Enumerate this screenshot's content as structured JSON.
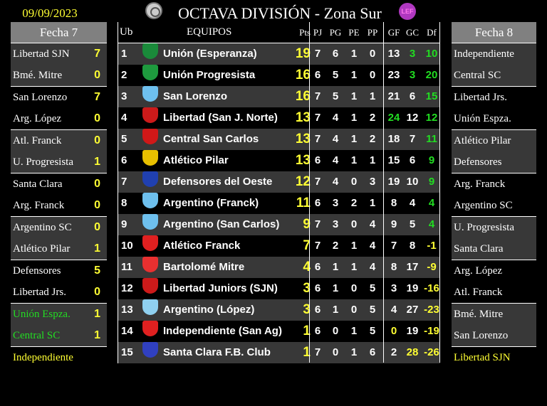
{
  "header": {
    "date": "09/09/2023",
    "title": "OCTAVA DIVISIÓN - Zona Sur",
    "logo_right_text": "LEF"
  },
  "colors": {
    "highlight_green": "#22dd22",
    "highlight_yellow": "#ffff33",
    "row_gray": "#383838",
    "header_gray": "#808080"
  },
  "left": {
    "title": "Fecha 7",
    "matches": [
      {
        "home": "Libertad SJN",
        "home_score": "7",
        "away": "Bmé. Mitre",
        "away_score": "0"
      },
      {
        "home": "San Lorenzo",
        "home_score": "7",
        "away": "Arg. López",
        "away_score": "0"
      },
      {
        "home": "Atl. Franck",
        "home_score": "0",
        "away": "U. Progresista",
        "away_score": "1"
      },
      {
        "home": "Santa Clara",
        "home_score": "0",
        "away": "Arg. Franck",
        "away_score": "0"
      },
      {
        "home": "Argentino SC",
        "home_score": "0",
        "away": "Atlético Pilar",
        "away_score": "1"
      },
      {
        "home": "Defensores",
        "home_score": "5",
        "away": "Libertad Jrs.",
        "away_score": "0"
      },
      {
        "home": "Unión Espza.",
        "home_score": "1",
        "away": "Central SC",
        "away_score": "1",
        "name_color": "green"
      }
    ],
    "bye": "Independiente"
  },
  "right": {
    "title": "Fecha 8",
    "matches": [
      {
        "home": "Independiente",
        "away": "Central SC"
      },
      {
        "home": "Libertad Jrs.",
        "away": "Unión Espza."
      },
      {
        "home": "Atlético Pilar",
        "away": "Defensores"
      },
      {
        "home": "Arg. Franck",
        "away": "Argentino SC"
      },
      {
        "home": "U. Progresista",
        "away": "Santa Clara"
      },
      {
        "home": "Arg. López",
        "away": "Atl. Franck"
      },
      {
        "home": "Bmé. Mitre",
        "away": "San Lorenzo"
      }
    ],
    "bye": "Libertad SJN"
  },
  "table": {
    "columns": {
      "ub": "Ub",
      "team": "EQUIPOS",
      "pts": "Pts",
      "pj": "PJ",
      "pg": "PG",
      "pe": "PE",
      "pp": "PP",
      "gf": "GF",
      "gc": "GC",
      "df": "Df"
    },
    "rows": [
      {
        "ub": "1",
        "team": "Unión (Esperanza)",
        "crest": "#1a8a3a",
        "pts": "19",
        "pj": "7",
        "pg": "6",
        "pe": "1",
        "pp": "0",
        "gf": "13",
        "gc": "3",
        "df": "10",
        "gc_hl": "green"
      },
      {
        "ub": "2",
        "team": "Unión Progresista",
        "crest": "#1e9a3e",
        "pts": "16",
        "pj": "6",
        "pg": "5",
        "pe": "1",
        "pp": "0",
        "gf": "23",
        "gc": "3",
        "df": "20",
        "gc_hl": "green"
      },
      {
        "ub": "3",
        "team": "San Lorenzo",
        "crest": "#6ec0ee",
        "pts": "16",
        "pj": "7",
        "pg": "5",
        "pe": "1",
        "pp": "1",
        "gf": "21",
        "gc": "6",
        "df": "15"
      },
      {
        "ub": "4",
        "team": "Libertad (San J. Norte)",
        "crest": "#cc1a1a",
        "pts": "13",
        "pj": "7",
        "pg": "4",
        "pe": "1",
        "pp": "2",
        "gf": "24",
        "gc": "12",
        "df": "12",
        "gf_hl": "green"
      },
      {
        "ub": "5",
        "team": "Central San Carlos",
        "crest": "#d01818",
        "pts": "13",
        "pj": "7",
        "pg": "4",
        "pe": "1",
        "pp": "2",
        "gf": "18",
        "gc": "7",
        "df": "11"
      },
      {
        "ub": "6",
        "team": "Atlético Pilar",
        "crest": "#e8c000",
        "pts": "13",
        "pj": "6",
        "pg": "4",
        "pe": "1",
        "pp": "1",
        "gf": "15",
        "gc": "6",
        "df": "9"
      },
      {
        "ub": "7",
        "team": "Defensores del Oeste",
        "crest": "#2040b0",
        "pts": "12",
        "pj": "7",
        "pg": "4",
        "pe": "0",
        "pp": "3",
        "gf": "19",
        "gc": "10",
        "df": "9"
      },
      {
        "ub": "8",
        "team": "Argentino (Franck)",
        "crest": "#6ec0ee",
        "pts": "11",
        "pj": "6",
        "pg": "3",
        "pe": "2",
        "pp": "1",
        "gf": "8",
        "gc": "4",
        "df": "4"
      },
      {
        "ub": "9",
        "team": "Argentino (San Carlos)",
        "crest": "#6ec0ee",
        "pts": "9",
        "pj": "7",
        "pg": "3",
        "pe": "0",
        "pp": "4",
        "gf": "9",
        "gc": "5",
        "df": "4"
      },
      {
        "ub": "10",
        "team": "Atlético Franck",
        "crest": "#e02020",
        "pts": "7",
        "pj": "7",
        "pg": "2",
        "pe": "1",
        "pp": "4",
        "gf": "7",
        "gc": "8",
        "df": "-1"
      },
      {
        "ub": "11",
        "team": "Bartolomé Mitre",
        "crest": "#e83030",
        "pts": "4",
        "pj": "6",
        "pg": "1",
        "pe": "1",
        "pp": "4",
        "gf": "8",
        "gc": "17",
        "df": "-9"
      },
      {
        "ub": "12",
        "team": "Libertad Juniors (SJN)",
        "crest": "#cc1a1a",
        "pts": "3",
        "pj": "6",
        "pg": "1",
        "pe": "0",
        "pp": "5",
        "gf": "3",
        "gc": "19",
        "df": "-16"
      },
      {
        "ub": "13",
        "team": "Argentino (López)",
        "crest": "#8fd0f0",
        "pts": "3",
        "pj": "6",
        "pg": "1",
        "pe": "0",
        "pp": "5",
        "gf": "4",
        "gc": "27",
        "df": "-23"
      },
      {
        "ub": "14",
        "team": "Independiente (San Ag)",
        "crest": "#e02020",
        "pts": "1",
        "pj": "6",
        "pg": "0",
        "pe": "1",
        "pp": "5",
        "gf": "0",
        "gc": "19",
        "df": "-19",
        "gf_hl": "yellow"
      },
      {
        "ub": "15",
        "team": "Santa Clara F.B. Club",
        "crest": "#3040c0",
        "pts": "1",
        "pj": "7",
        "pg": "0",
        "pe": "1",
        "pp": "6",
        "gf": "2",
        "gc": "28",
        "df": "-26",
        "gc_hl": "yellow"
      }
    ]
  }
}
